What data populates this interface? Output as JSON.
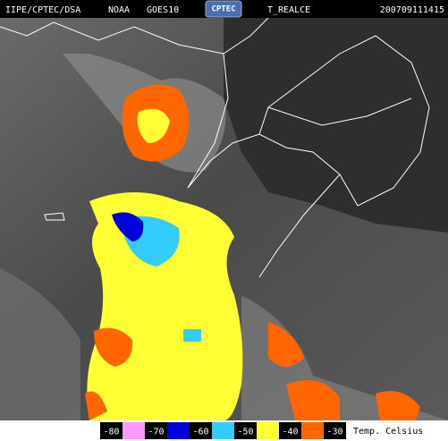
{
  "header": {
    "source": "IIPE/CPTEC/DSA",
    "agency": "NOAA",
    "satellite": "GOES10",
    "logo": "CPTEC",
    "product": "T_REALCE",
    "timestamp": "200709111415"
  },
  "legend": {
    "ticks": [
      -80,
      -70,
      -60,
      -50,
      -40,
      -30
    ],
    "colors": [
      "#ff99ff",
      "#0000dd",
      "#33ccff",
      "#ffff33",
      "#ff6600"
    ],
    "unit_label": "Temp. Celsius"
  }
}
